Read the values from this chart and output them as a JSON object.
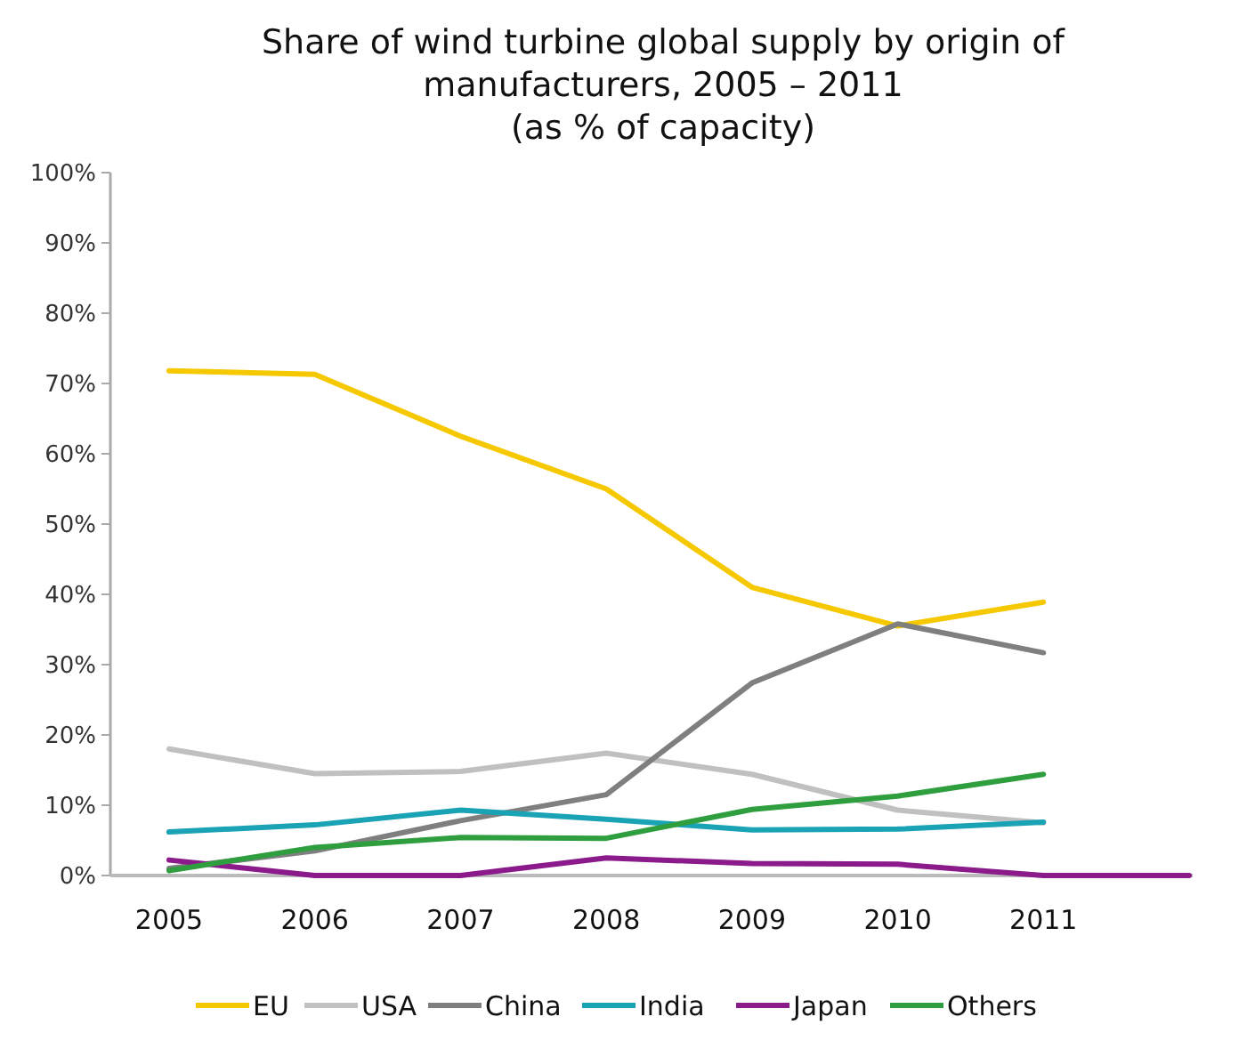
{
  "chart_data": {
    "type": "line",
    "title": "Share of wind turbine global supply by origin of\nmanufacturers, 2005 – 2011\n(as % of capacity)",
    "categories": [
      "2005",
      "2006",
      "2007",
      "2008",
      "2009",
      "2010",
      "2011",
      null
    ],
    "ylim": [
      0,
      100
    ],
    "yticks": [
      {
        "value": 0,
        "label": "0%"
      },
      {
        "value": 10,
        "label": "10%"
      },
      {
        "value": 20,
        "label": "20%"
      },
      {
        "value": 30,
        "label": "30%"
      },
      {
        "value": 40,
        "label": "40%"
      },
      {
        "value": 50,
        "label": "50%"
      },
      {
        "value": 60,
        "label": "60%"
      },
      {
        "value": 70,
        "label": "70%"
      },
      {
        "value": 80,
        "label": "80%"
      },
      {
        "value": 90,
        "label": "90%"
      },
      {
        "value": 100,
        "label": "100%"
      }
    ],
    "grid": false,
    "legend": "bottom",
    "marker": "none",
    "line_style": "solid",
    "series": [
      {
        "name": "EU",
        "color": "#f5c800",
        "values": [
          71.8,
          71.3,
          62.5,
          55,
          41,
          35.5,
          38.9,
          null
        ]
      },
      {
        "name": "USA",
        "color": "#c0c0c0",
        "values": [
          18,
          14.5,
          14.8,
          17.4,
          14.4,
          9.3,
          7.5,
          null
        ]
      },
      {
        "name": "China",
        "color": "#7f7f7f",
        "values": [
          1,
          3.5,
          7.8,
          11.5,
          27.4,
          35.8,
          31.7,
          null
        ]
      },
      {
        "name": "India",
        "color": "#1aa3b5",
        "values": [
          6.2,
          7.2,
          9.3,
          8,
          6.5,
          6.6,
          7.6,
          null
        ]
      },
      {
        "name": "Japan",
        "color": "#8b1a8b",
        "values": [
          2.2,
          0,
          0,
          2.5,
          1.7,
          1.6,
          0,
          0
        ]
      },
      {
        "name": "Others",
        "color": "#2e9e3e",
        "values": [
          0.7,
          4,
          5.4,
          5.3,
          9.4,
          11.3,
          14.4,
          null
        ]
      }
    ]
  }
}
